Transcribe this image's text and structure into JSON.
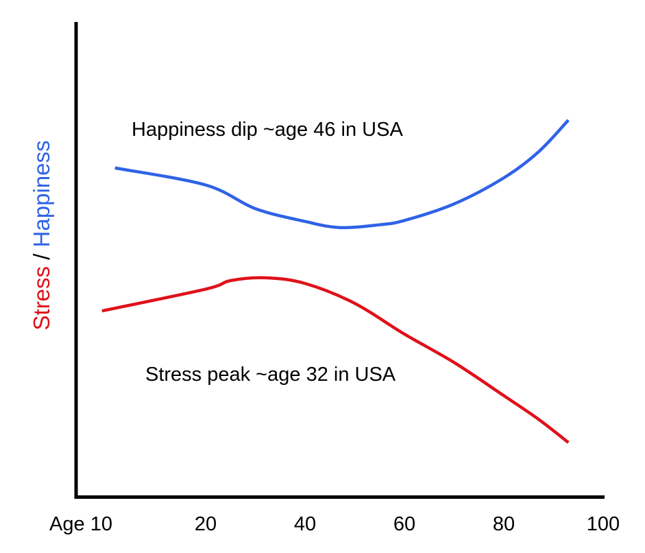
{
  "chart_data": {
    "type": "line",
    "title": "",
    "ylabel_parts": [
      {
        "text": "Stress",
        "color": "#e0101a"
      },
      {
        "text": " / ",
        "color": "#000000"
      },
      {
        "text": "Happiness",
        "color": "#2f62e6"
      }
    ],
    "x_ticks": [
      {
        "value": 10,
        "label": "Age 10"
      },
      {
        "value": 20,
        "label": "20"
      },
      {
        "value": 40,
        "label": "40"
      },
      {
        "value": 60,
        "label": "60"
      },
      {
        "value": 80,
        "label": "80"
      },
      {
        "value": 100,
        "label": "100"
      }
    ],
    "xlim": [
      10,
      100
    ],
    "ylim": [
      0,
      100
    ],
    "grid": false,
    "y_ticks_shown": false,
    "series": [
      {
        "key": "happiness",
        "color": "#2f62e6",
        "x": [
          13,
          20,
          30,
          40,
          47,
          55,
          60,
          70,
          80,
          87,
          93
        ],
        "y": [
          69.6,
          66,
          61,
          58.3,
          57,
          57.6,
          58.5,
          62,
          67.5,
          73,
          79.7
        ]
      },
      {
        "key": "stress",
        "color": "#e0101a",
        "x": [
          12,
          20,
          25,
          32,
          40,
          50,
          60,
          70,
          80,
          87,
          93
        ],
        "y": [
          39.4,
          44,
          45.8,
          46.4,
          45.2,
          41,
          34.5,
          28.5,
          21.5,
          16.5,
          11.6
        ]
      }
    ],
    "annotations": [
      {
        "key": "happiness",
        "text": "Happiness dip ~age 46 in USA"
      },
      {
        "key": "stress",
        "text": "Stress peak ~age 32 in USA"
      }
    ]
  }
}
